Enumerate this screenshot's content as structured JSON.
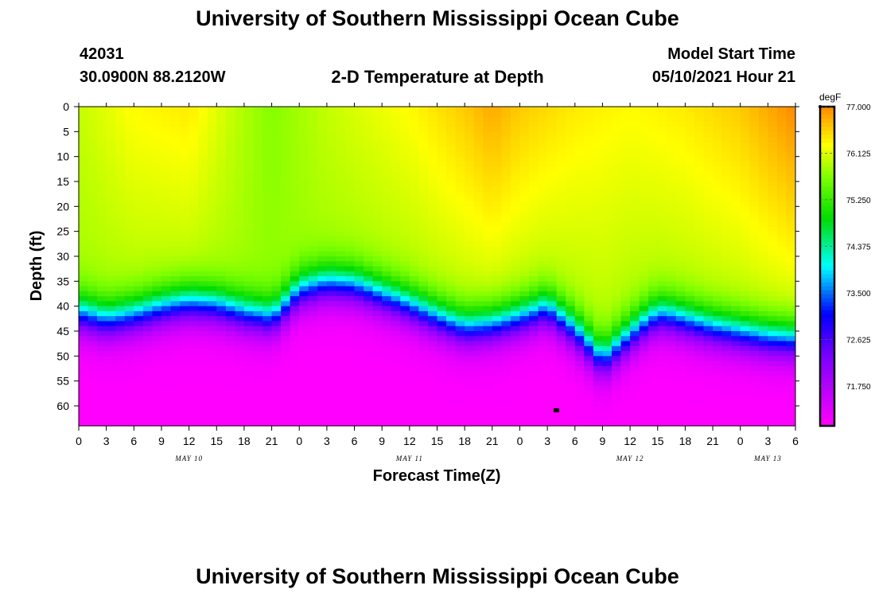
{
  "header": {
    "title": "University of Southern Mississippi Ocean Cube",
    "station_id": "42031",
    "coordinates": "30.0900N  88.2120W",
    "chart_title": "2-D Temperature at Depth",
    "model_label": "Model Start Time",
    "model_time": "05/10/2021 Hour 21"
  },
  "footer": {
    "title": "University of Southern Mississippi Ocean Cube"
  },
  "colorbar": {
    "unit": "degF",
    "min": 71.0,
    "max": 77.0,
    "tick_values": [
      77.0,
      76.125,
      75.25,
      74.375,
      73.5,
      72.625,
      71.75
    ],
    "tick_labels": [
      "77.000",
      "76.125",
      "75.250",
      "74.375",
      "73.500",
      "72.625",
      "71.750"
    ]
  },
  "chart_data": {
    "type": "heatmap",
    "title": "2-D Temperature at Depth",
    "xlabel": "Forecast Time(Z)",
    "ylabel": "Depth (ft)",
    "xlim": [
      0,
      78
    ],
    "ylim": [
      0,
      64
    ],
    "x_unit": "hours from 05/10/2021 00Z",
    "x_ticks": [
      0,
      3,
      6,
      9,
      12,
      15,
      18,
      21,
      24,
      27,
      30,
      33,
      36,
      39,
      42,
      45,
      48,
      51,
      54,
      57,
      60,
      63,
      66,
      69,
      72,
      75,
      78
    ],
    "x_tick_labels": [
      "0",
      "3",
      "6",
      "9",
      "12",
      "15",
      "18",
      "21",
      "0",
      "3",
      "6",
      "9",
      "12",
      "15",
      "18",
      "21",
      "0",
      "3",
      "6",
      "9",
      "12",
      "15",
      "18",
      "21",
      "0",
      "3",
      "6"
    ],
    "date_labels": [
      {
        "x": 12,
        "label": "MAY 10"
      },
      {
        "x": 36,
        "label": "MAY 11"
      },
      {
        "x": 60,
        "label": "MAY 12"
      },
      {
        "x": 75,
        "label": "MAY 13"
      }
    ],
    "y_ticks": [
      0,
      5,
      10,
      15,
      20,
      25,
      30,
      35,
      40,
      45,
      50,
      55,
      60
    ],
    "y_tick_labels": [
      "0",
      "5",
      "10",
      "15",
      "20",
      "25",
      "30",
      "35",
      "40",
      "45",
      "50",
      "55",
      "60"
    ],
    "thermocline_depth_ft": {
      "x": [
        0,
        3,
        6,
        9,
        12,
        15,
        18,
        21,
        22,
        24,
        27,
        30,
        33,
        36,
        39,
        42,
        45,
        48,
        51,
        54,
        57,
        60,
        62,
        63,
        64,
        66,
        69,
        72,
        75,
        78
      ],
      "y": [
        41.5,
        43.0,
        42.0,
        40.5,
        39.5,
        40.0,
        41.5,
        42.5,
        41.0,
        37.0,
        35.5,
        36.0,
        38.0,
        40.0,
        42.5,
        44.5,
        44.0,
        42.5,
        40.5,
        45.0,
        51.0,
        46.0,
        43.0,
        42.0,
        42.0,
        43.0,
        44.5,
        45.5,
        46.5,
        47.0
      ]
    },
    "surface_temperature_degF": {
      "x": [
        0,
        6,
        12,
        18,
        21,
        27,
        33,
        36,
        42,
        45,
        48,
        54,
        60,
        66,
        72,
        78
      ],
      "values": [
        76.0,
        76.3,
        76.4,
        75.9,
        75.7,
        76.0,
        76.2,
        76.3,
        76.6,
        76.8,
        76.6,
        76.4,
        76.3,
        76.4,
        76.6,
        77.0
      ]
    },
    "bottom_temperature_degF": 71.0
  }
}
